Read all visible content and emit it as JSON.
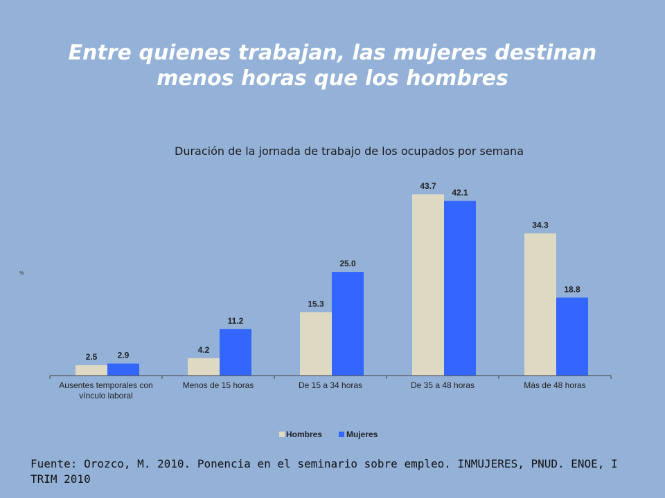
{
  "slide": {
    "title_line1": "Entre quienes trabajan, las mujeres destinan",
    "title_line2": "menos horas que los hombres",
    "source": "Fuente: Orozco, M. 2010. Ponencia en el seminario sobre empleo. INMUJERES, PNUD. ENOE, I TRIM 2010"
  },
  "colors": {
    "background": "#94b1d7",
    "hombres": "#ded9c2",
    "mujeres": "#3366ff"
  },
  "chart_data": {
    "type": "bar",
    "title": "Duración de la jornada de trabajo de los ocupados por semana",
    "ylabel": "%",
    "ylim": [
      0,
      45
    ],
    "grid": false,
    "legend": "bottom",
    "categories": [
      [
        "Ausentes temporales con",
        "vínculo laboral"
      ],
      [
        "Menos de 15 horas"
      ],
      [
        "De 15 a 34 horas"
      ],
      [
        "De 35 a 48 horas"
      ],
      [
        "Más de 48 horas"
      ]
    ],
    "series": [
      {
        "name": "Hombres",
        "values": [
          2.5,
          4.2,
          15.3,
          43.7,
          34.3
        ]
      },
      {
        "name": "Mujeres",
        "values": [
          2.9,
          11.2,
          25.0,
          42.1,
          18.8
        ]
      }
    ]
  }
}
